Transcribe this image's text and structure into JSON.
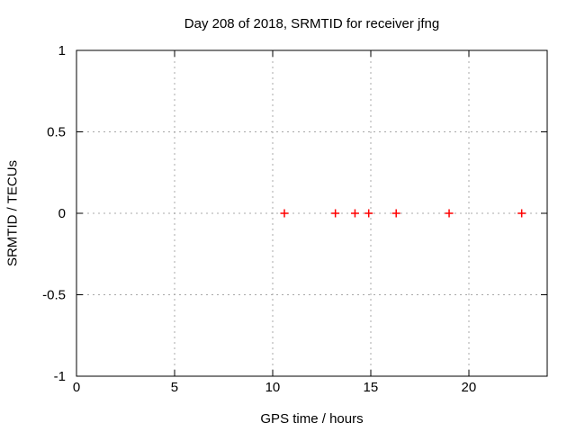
{
  "chart_data": {
    "type": "scatter",
    "title": "Day 208 of 2018, SRMTID for receiver jfng",
    "xlabel": "GPS time / hours",
    "ylabel": "SRMTID / TECUs",
    "xlim": [
      0,
      24
    ],
    "ylim": [
      -1,
      1
    ],
    "xticks": [
      0,
      5,
      10,
      15,
      20
    ],
    "xtick_labels": [
      "0",
      "5",
      "10",
      "15",
      "20"
    ],
    "yticks": [
      -1,
      -0.5,
      0,
      0.5,
      1
    ],
    "ytick_labels": [
      "-1",
      "-0.5",
      "0",
      "0.5",
      "1"
    ],
    "grid": true,
    "legend": "none",
    "marker": "plus",
    "series": [
      {
        "name": "",
        "marker": "plus",
        "color": "#ff0000",
        "points": [
          [
            10.6,
            0
          ],
          [
            13.2,
            0
          ],
          [
            14.2,
            0
          ],
          [
            14.9,
            0
          ],
          [
            16.3,
            0
          ],
          [
            19.0,
            0
          ],
          [
            22.7,
            0
          ]
        ]
      }
    ],
    "colors": {
      "background": "#ffffff",
      "border": "#000000",
      "grid": "#a8a8a8",
      "text": "#000000"
    }
  }
}
